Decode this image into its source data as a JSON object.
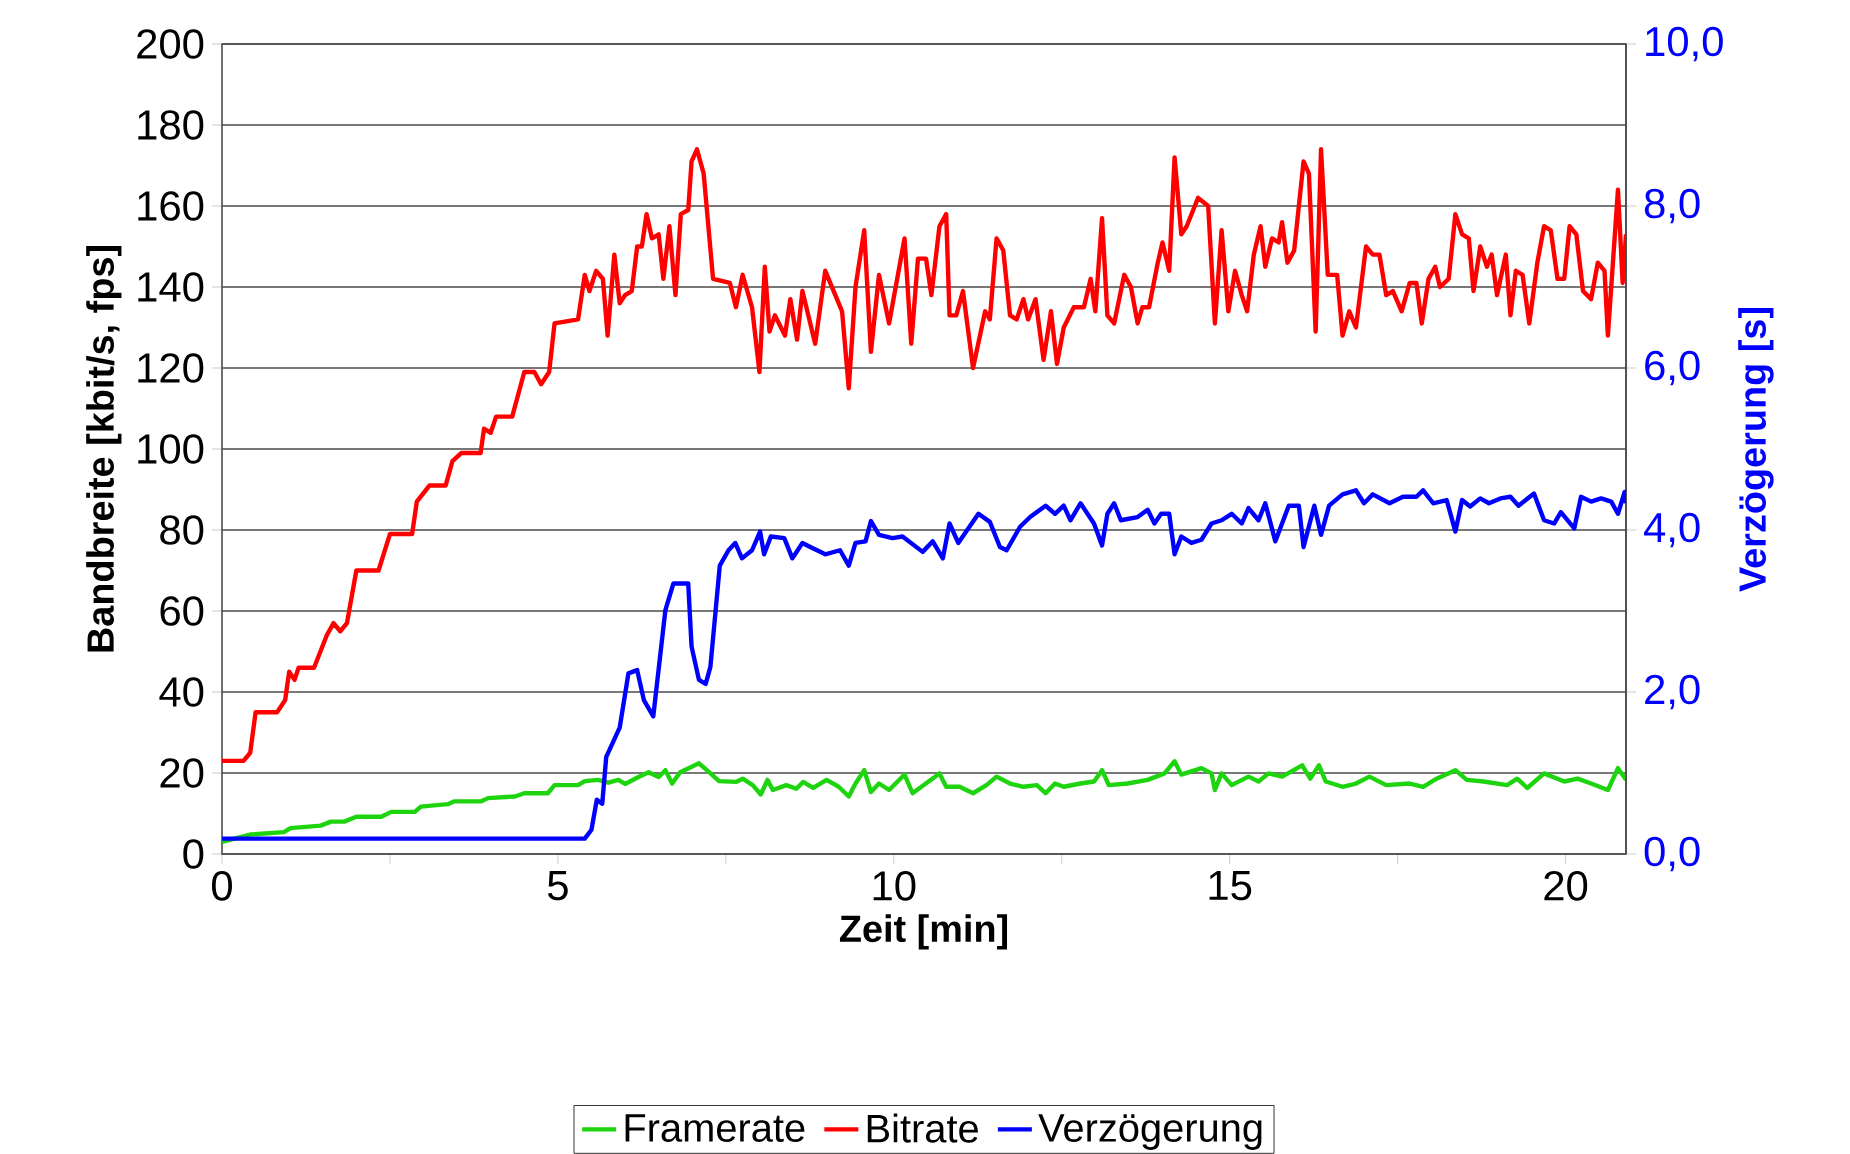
{
  "chart_data": {
    "type": "line",
    "xlabel": "Zeit [min]",
    "ylabel": "Bandbreite [kbit/s, fps]",
    "y2label": "Verzögerung [s]",
    "xlim": [
      0,
      20.9
    ],
    "xticks": [
      0,
      {
        "value": 2.5,
        "label": null
      },
      5,
      {
        "value": 7.5,
        "label": null
      },
      10,
      {
        "value": 12.5,
        "label": null
      },
      15,
      {
        "value": 17.5,
        "label": null
      },
      20
    ],
    "ylim": [
      0,
      200
    ],
    "yticks": [
      0,
      20,
      40,
      60,
      80,
      100,
      120,
      140,
      160,
      180,
      200
    ],
    "y2lim": [
      0,
      10
    ],
    "y2ticks": [
      {
        "value": 0,
        "label": "0,0"
      },
      {
        "value": 2,
        "label": "2,0"
      },
      {
        "value": 4,
        "label": "4,0"
      },
      {
        "value": 6,
        "label": "6,0"
      },
      {
        "value": 8,
        "label": "8,0"
      },
      {
        "value": 10,
        "label": "10,0"
      }
    ],
    "grid": "y",
    "legend": "bottom",
    "series": [
      {
        "name": "Framerate",
        "color": "#1ed40f",
        "x": [
          0,
          0.42,
          0.92,
          1.02,
          1.47,
          1.62,
          1.82,
          2.0,
          2.37,
          2.52,
          2.87,
          2.96,
          3.36,
          3.46,
          3.86,
          3.96,
          4.36,
          4.5,
          4.85,
          4.95,
          5.3,
          5.4,
          5.6,
          5.75,
          5.9,
          6.0,
          6.2,
          6.35,
          6.5,
          6.6,
          6.7,
          6.82,
          7.0,
          7.1,
          7.25,
          7.4,
          7.65,
          7.75,
          7.9,
          8.02,
          8.12,
          8.2,
          8.4,
          8.55,
          8.65,
          8.8,
          9.0,
          9.18,
          9.33,
          9.43,
          9.56,
          9.66,
          9.78,
          9.93,
          10.16,
          10.28,
          10.68,
          10.78,
          10.98,
          11.18,
          11.38,
          11.53,
          11.73,
          11.93,
          12.13,
          12.26,
          12.4,
          12.53,
          12.78,
          12.98,
          13.1,
          13.2,
          13.48,
          13.78,
          14.03,
          14.18,
          14.28,
          14.58,
          14.73,
          14.78,
          14.88,
          15.03,
          15.28,
          15.43,
          15.58,
          15.78,
          16.08,
          16.2,
          16.33,
          16.43,
          16.68,
          16.88,
          17.08,
          17.33,
          17.68,
          17.88,
          18.08,
          18.36,
          18.53,
          18.78,
          19.13,
          19.28,
          19.43,
          19.68,
          19.98,
          20.18,
          20.38,
          20.63,
          20.78,
          20.9
        ],
        "values": [
          3,
          4.8,
          5.4,
          6.4,
          7,
          8,
          8,
          9.2,
          9.2,
          10.4,
          10.4,
          11.7,
          12.3,
          13,
          13,
          13.8,
          14.2,
          15,
          15,
          17,
          17,
          18,
          18.3,
          17.6,
          18.3,
          17.3,
          19,
          20.2,
          19,
          20.7,
          17.4,
          20.2,
          21.6,
          22.4,
          20.2,
          18,
          17.8,
          18.6,
          17,
          14.7,
          18.3,
          15.8,
          17,
          16.1,
          17.8,
          16.3,
          18.3,
          16.6,
          14.2,
          17.4,
          20.7,
          15.3,
          17.4,
          15.8,
          19.6,
          15,
          19.9,
          16.6,
          16.6,
          15,
          17,
          19.1,
          17.4,
          16.6,
          17,
          15,
          17.4,
          16.6,
          17.4,
          17.9,
          20.7,
          17,
          17.4,
          18.3,
          19.9,
          22.9,
          19.6,
          21.2,
          19.9,
          15.8,
          19.9,
          17,
          19.1,
          17.9,
          19.9,
          19.1,
          21.9,
          18.6,
          21.9,
          17.9,
          16.6,
          17.4,
          19.1,
          17,
          17.4,
          16.6,
          18.6,
          20.7,
          18.3,
          17.9,
          17,
          18.6,
          16.3,
          19.9,
          17.9,
          18.6,
          17.4,
          15.8,
          21.2,
          18.3
        ]
      },
      {
        "name": "Bitrate",
        "color": "#ff0000",
        "x": [
          0,
          0.32,
          0.42,
          0.5,
          0.82,
          0.94,
          1.0,
          1.08,
          1.14,
          1.37,
          1.56,
          1.66,
          1.76,
          1.86,
          2.0,
          2.33,
          2.5,
          2.83,
          2.9,
          3.09,
          3.33,
          3.43,
          3.56,
          3.85,
          3.9,
          4.0,
          4.08,
          4.32,
          4.5,
          4.65,
          4.75,
          4.87,
          4.95,
          5.3,
          5.4,
          5.47,
          5.57,
          5.67,
          5.74,
          5.84,
          5.92,
          6.0,
          6.1,
          6.18,
          6.25,
          6.32,
          6.4,
          6.5,
          6.57,
          6.66,
          6.75,
          6.83,
          6.94,
          6.99,
          7.07,
          7.17,
          7.31,
          7.56,
          7.65,
          7.75,
          7.89,
          8.0,
          8.08,
          8.15,
          8.23,
          8.38,
          8.46,
          8.56,
          8.64,
          8.83,
          8.98,
          9.23,
          9.33,
          9.43,
          9.56,
          9.66,
          9.78,
          9.93,
          10.16,
          10.26,
          10.36,
          10.48,
          10.56,
          10.68,
          10.78,
          10.83,
          10.93,
          11.03,
          11.18,
          11.36,
          11.43,
          11.53,
          11.63,
          11.73,
          11.83,
          11.93,
          12.0,
          12.11,
          12.23,
          12.34,
          12.43,
          12.53,
          12.68,
          12.83,
          12.93,
          13.0,
          13.1,
          13.18,
          13.28,
          13.43,
          13.53,
          13.63,
          13.7,
          13.8,
          13.93,
          14.0,
          14.1,
          14.18,
          14.28,
          14.36,
          14.53,
          14.68,
          14.78,
          14.88,
          14.98,
          15.08,
          15.18,
          15.26,
          15.36,
          15.46,
          15.53,
          15.63,
          15.73,
          15.78,
          15.86,
          15.96,
          16.1,
          16.18,
          16.28,
          16.36,
          16.46,
          16.6,
          16.68,
          16.78,
          16.88,
          17.03,
          17.13,
          17.23,
          17.33,
          17.43,
          17.56,
          17.68,
          17.78,
          17.86,
          17.96,
          18.06,
          18.13,
          18.26,
          18.36,
          18.46,
          18.56,
          18.63,
          18.73,
          18.83,
          18.9,
          18.98,
          19.11,
          19.18,
          19.26,
          19.36,
          19.46,
          19.58,
          19.68,
          19.78,
          19.88,
          19.98,
          20.06,
          20.16,
          20.26,
          20.38,
          20.48,
          20.58,
          20.63,
          20.78,
          20.85,
          20.9
        ],
        "values": [
          23,
          23,
          25,
          35,
          35,
          38,
          45,
          43,
          46,
          46,
          54,
          57,
          55,
          57,
          70,
          70,
          79,
          79,
          87,
          91,
          91,
          97,
          99,
          99,
          105,
          104,
          108,
          108,
          119,
          119,
          116,
          119,
          131,
          132,
          143,
          139,
          144,
          142,
          128,
          148,
          136,
          138,
          139,
          150,
          150,
          158,
          152,
          153,
          142,
          155,
          138,
          158,
          159,
          171,
          174,
          168,
          142,
          141,
          135,
          143,
          135,
          119,
          145,
          129,
          133,
          128,
          137,
          127,
          139,
          126,
          144,
          134,
          115,
          140,
          154,
          124,
          143,
          131,
          152,
          126,
          147,
          147,
          138,
          155,
          158,
          133,
          133,
          139,
          120,
          134,
          132,
          152,
          149,
          133,
          132,
          137,
          132,
          137,
          122,
          134,
          121,
          130,
          135,
          135,
          142,
          134,
          157,
          133,
          131,
          143,
          140,
          131,
          135,
          135,
          146,
          151,
          144,
          172,
          153,
          155,
          162,
          160,
          131,
          154,
          134,
          144,
          138,
          134,
          148,
          155,
          145,
          152,
          151,
          156,
          146,
          149,
          171,
          168,
          129,
          174,
          143,
          143,
          128,
          134,
          130,
          150,
          148,
          148,
          138,
          139,
          134,
          141,
          141,
          131,
          142,
          145,
          140,
          142,
          158,
          153,
          152,
          139,
          150,
          145,
          148,
          138,
          148,
          133,
          144,
          143,
          131,
          146,
          155,
          154,
          142,
          142,
          155,
          153,
          139,
          137,
          146,
          144,
          128,
          164,
          141,
          153
        ]
      },
      {
        "name": "Verzögerung",
        "color": "#0000ff",
        "axis": "y2",
        "x": [
          0,
          5.4,
          5.5,
          5.58,
          5.66,
          5.72,
          5.92,
          6.05,
          6.18,
          6.28,
          6.42,
          6.6,
          6.72,
          6.94,
          6.99,
          7.1,
          7.2,
          7.27,
          7.41,
          7.54,
          7.64,
          7.74,
          7.89,
          8.01,
          8.07,
          8.17,
          8.37,
          8.49,
          8.64,
          8.78,
          8.98,
          9.2,
          9.33,
          9.43,
          9.58,
          9.66,
          9.78,
          9.98,
          10.13,
          10.43,
          10.58,
          10.73,
          10.83,
          10.96,
          11.06,
          11.26,
          11.43,
          11.58,
          11.68,
          11.88,
          12.03,
          12.26,
          12.4,
          12.53,
          12.63,
          12.78,
          12.98,
          13.1,
          13.18,
          13.28,
          13.38,
          13.63,
          13.78,
          13.88,
          13.98,
          14.1,
          14.18,
          14.28,
          14.43,
          14.58,
          14.73,
          14.88,
          15.03,
          15.18,
          15.28,
          15.43,
          15.53,
          15.68,
          15.88,
          16.03,
          16.1,
          16.26,
          16.36,
          16.48,
          16.68,
          16.88,
          17.0,
          17.13,
          17.38,
          17.58,
          17.78,
          17.88,
          18.03,
          18.23,
          18.36,
          18.46,
          18.58,
          18.73,
          18.86,
          19.03,
          19.18,
          19.3,
          19.53,
          19.68,
          19.83,
          19.93,
          20.13,
          20.23,
          20.38,
          20.53,
          20.68,
          20.78,
          20.88,
          20.9
        ],
        "values": [
          0.19,
          0.19,
          0.3,
          0.67,
          0.62,
          1.2,
          1.56,
          2.23,
          2.27,
          1.9,
          1.7,
          3.01,
          3.34,
          3.34,
          2.56,
          2.15,
          2.1,
          2.31,
          3.56,
          3.75,
          3.84,
          3.65,
          3.75,
          3.98,
          3.7,
          3.92,
          3.9,
          3.65,
          3.84,
          3.78,
          3.7,
          3.75,
          3.56,
          3.84,
          3.86,
          4.11,
          3.94,
          3.9,
          3.92,
          3.73,
          3.86,
          3.65,
          4.08,
          3.84,
          3.96,
          4.2,
          4.1,
          3.79,
          3.75,
          4.04,
          4.16,
          4.3,
          4.2,
          4.3,
          4.12,
          4.33,
          4.08,
          3.81,
          4.2,
          4.33,
          4.12,
          4.16,
          4.25,
          4.08,
          4.2,
          4.2,
          3.7,
          3.92,
          3.84,
          3.88,
          4.08,
          4.12,
          4.2,
          4.08,
          4.27,
          4.12,
          4.33,
          3.86,
          4.3,
          4.3,
          3.79,
          4.3,
          3.94,
          4.3,
          4.44,
          4.49,
          4.33,
          4.44,
          4.33,
          4.41,
          4.41,
          4.49,
          4.33,
          4.37,
          3.98,
          4.37,
          4.29,
          4.39,
          4.33,
          4.39,
          4.41,
          4.3,
          4.45,
          4.12,
          4.08,
          4.22,
          4.02,
          4.41,
          4.35,
          4.39,
          4.35,
          4.2,
          4.47,
          4.33
        ]
      }
    ]
  }
}
